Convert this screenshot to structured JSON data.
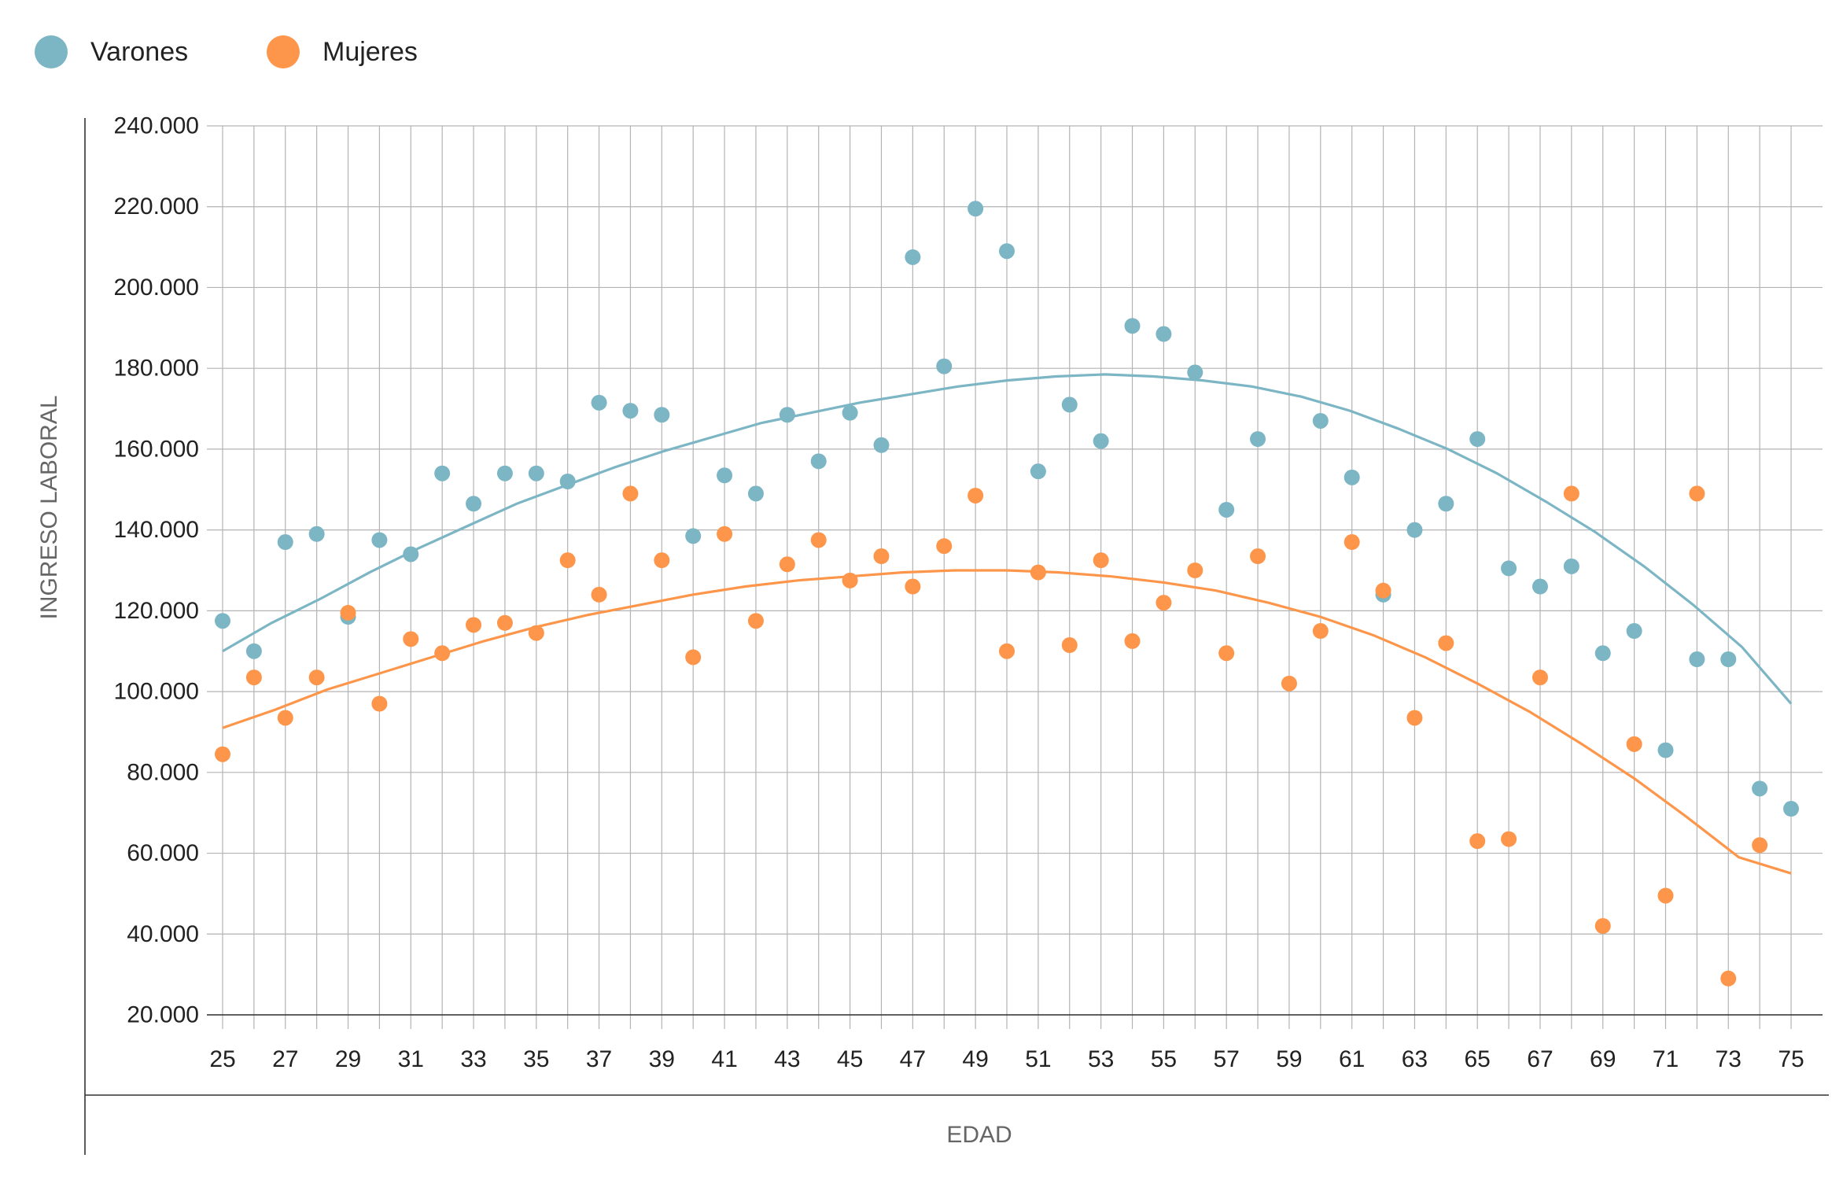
{
  "colors": {
    "varones": "#7cb5c4",
    "mujeres": "#fd964a",
    "grid": "#b3b3b3",
    "axis": "#333333",
    "text": "#222222",
    "axis_title": "#666666"
  },
  "chart_data": {
    "type": "scatter",
    "title": "",
    "xlabel": "EDAD",
    "ylabel": "INGRESO LABORAL",
    "xlim": [
      25,
      75
    ],
    "ylim": [
      20000,
      240000
    ],
    "grid": true,
    "legend_position": "top-left",
    "x_ticks": [
      25,
      27,
      29,
      31,
      33,
      35,
      37,
      39,
      41,
      43,
      45,
      47,
      49,
      51,
      53,
      55,
      57,
      59,
      61,
      63,
      65,
      67,
      69,
      71,
      73,
      75
    ],
    "x_tick_labels": [
      "25",
      "27",
      "29",
      "31",
      "33",
      "35",
      "37",
      "39",
      "41",
      "43",
      "45",
      "47",
      "49",
      "51",
      "53",
      "55",
      "57",
      "59",
      "61",
      "63",
      "65",
      "67",
      "69",
      "71",
      "73",
      "75"
    ],
    "y_ticks": [
      20000,
      40000,
      60000,
      80000,
      100000,
      120000,
      140000,
      160000,
      180000,
      200000,
      220000,
      240000
    ],
    "y_tick_labels": [
      "20.000",
      "40.000",
      "60.000",
      "80.000",
      "100.000",
      "120.000",
      "140.000",
      "160.000",
      "180.000",
      "200.000",
      "220.000",
      "240.000"
    ],
    "series": [
      {
        "name": "Varones",
        "color": "#7cb5c4",
        "x": [
          25,
          26,
          27,
          28,
          29,
          30,
          31,
          32,
          33,
          34,
          35,
          36,
          37,
          38,
          39,
          40,
          41,
          42,
          43,
          44,
          45,
          46,
          47,
          48,
          49,
          50,
          51,
          52,
          53,
          54,
          55,
          56,
          57,
          58,
          59,
          60,
          61,
          62,
          63,
          64,
          65,
          66,
          67,
          68,
          69,
          70,
          71,
          72,
          73,
          74,
          75
        ],
        "y": [
          117500,
          110000,
          137000,
          139000,
          118500,
          137500,
          134000,
          154000,
          146500,
          154000,
          154000,
          152000,
          171500,
          169500,
          168500,
          138500,
          153500,
          149000,
          168500,
          157000,
          169000,
          161000,
          207500,
          180500,
          219500,
          209000,
          154500,
          171000,
          162000,
          190500,
          188500,
          179000,
          145000,
          162500,
          null,
          167000,
          153000,
          124000,
          140000,
          146500,
          162500,
          130500,
          126000,
          131000,
          109500,
          115000,
          85500,
          108000,
          108000,
          76000,
          71000
        ],
        "trend": [
          110000,
          117000,
          123000,
          129500,
          135500,
          141000,
          146500,
          151000,
          155500,
          159500,
          163000,
          166500,
          169000,
          171500,
          173500,
          175500,
          177000,
          178000,
          178500,
          178000,
          177000,
          175500,
          173000,
          169500,
          165000,
          160000,
          154000,
          147000,
          139500,
          131000,
          121500,
          111000,
          97000
        ]
      },
      {
        "name": "Mujeres",
        "color": "#fd964a",
        "x": [
          25,
          26,
          27,
          28,
          29,
          30,
          31,
          32,
          33,
          34,
          35,
          36,
          37,
          38,
          39,
          40,
          41,
          42,
          43,
          44,
          45,
          46,
          47,
          48,
          49,
          50,
          51,
          52,
          53,
          54,
          55,
          56,
          57,
          58,
          59,
          60,
          61,
          62,
          63,
          64,
          65,
          66,
          67,
          68,
          69,
          70,
          71,
          72,
          73,
          74,
          75
        ],
        "y": [
          84500,
          103500,
          93500,
          103500,
          119500,
          97000,
          113000,
          109500,
          116500,
          117000,
          114500,
          132500,
          124000,
          149000,
          132500,
          108500,
          139000,
          117500,
          131500,
          137500,
          127500,
          133500,
          126000,
          136000,
          148500,
          110000,
          129500,
          111500,
          132500,
          112500,
          122000,
          130000,
          109500,
          133500,
          102000,
          115000,
          137000,
          125000,
          93500,
          112000,
          63000,
          63500,
          103500,
          149000,
          42000,
          87000,
          49500,
          149000,
          29000,
          62000,
          null
        ],
        "trend": [
          91000,
          95500,
          100500,
          104500,
          108500,
          112500,
          116000,
          119000,
          121500,
          124000,
          126000,
          127500,
          128500,
          129500,
          130000,
          130000,
          129500,
          128500,
          127000,
          125000,
          122000,
          118500,
          114000,
          108500,
          102000,
          95000,
          87000,
          78500,
          69000,
          59000,
          55000
        ]
      }
    ]
  }
}
